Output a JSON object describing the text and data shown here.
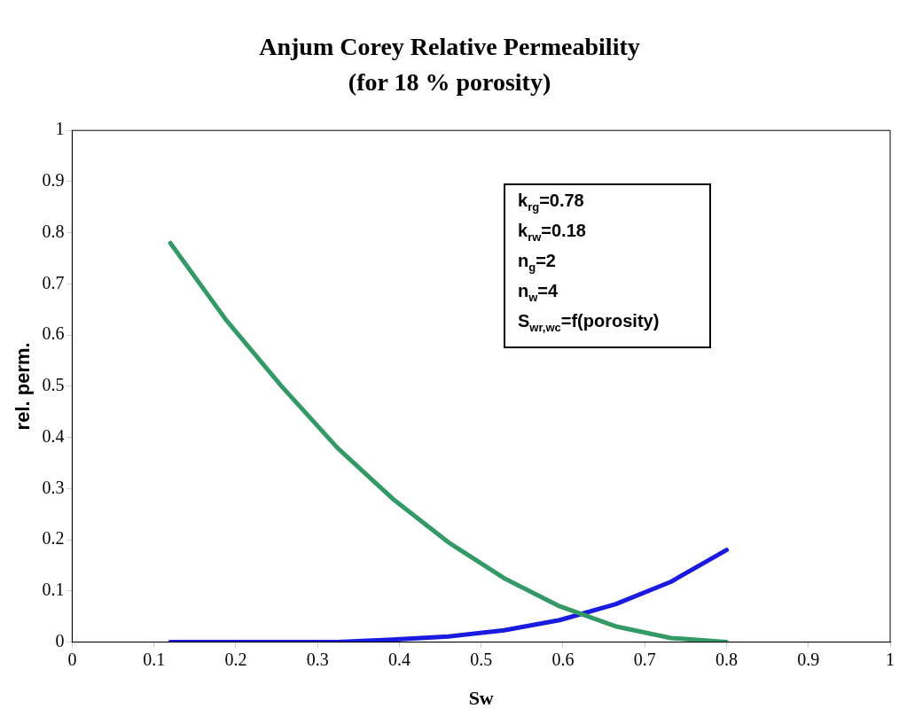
{
  "chart_data": {
    "type": "line",
    "title": "Anjum Corey Relative Permeability",
    "subtitle": "(for 18 % porosity)",
    "xlabel": "Sw",
    "ylabel": "rel. perm.",
    "series": [
      {
        "color": "#339966",
        "x": [
          0.12,
          0.188,
          0.256,
          0.324,
          0.392,
          0.46,
          0.528,
          0.596,
          0.664,
          0.732,
          0.8
        ],
        "values": [
          0.78,
          0.63,
          0.5,
          0.38,
          0.28,
          0.195,
          0.125,
          0.07,
          0.031,
          0.008,
          0
        ]
      },
      {
        "color": "#1a1ae0",
        "x": [
          0.12,
          0.188,
          0.256,
          0.324,
          0.392,
          0.46,
          0.528,
          0.596,
          0.664,
          0.732,
          0.8
        ],
        "values": [
          0,
          0,
          0,
          0,
          0.005,
          0.011,
          0.023,
          0.043,
          0.074,
          0.118,
          0.18
        ]
      }
    ],
    "xlim": [
      0,
      1
    ],
    "xticks": [
      0,
      0.1,
      0.2,
      0.3,
      0.4,
      0.5,
      0.6,
      0.7,
      0.8,
      0.9,
      1
    ],
    "ylim": [
      0,
      1
    ],
    "yticks": [
      0,
      0.1,
      0.2,
      0.3,
      0.4,
      0.5,
      0.6,
      0.7,
      0.8,
      0.9,
      1
    ],
    "annotations": [
      "k$_{rg}$=0.78\nk$_{rw}$=0.18\nn$_{g}$=2\nn$_{w}$=4\nS$_{wr,wc}$=f(porosity)"
    ],
    "grid": false,
    "legend": false,
    "marker": "none",
    "line_style": "solid"
  }
}
